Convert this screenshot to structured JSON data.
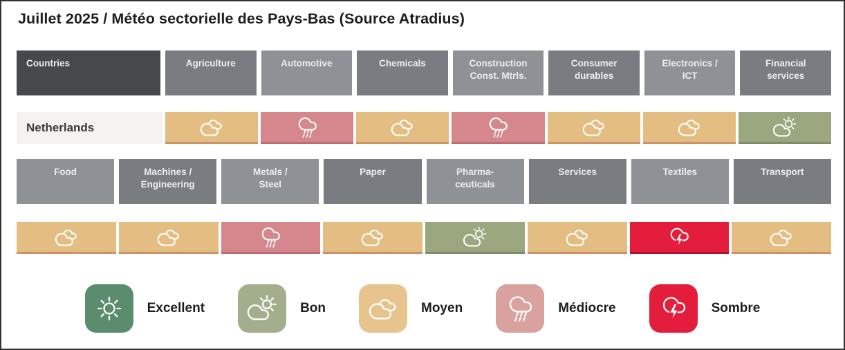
{
  "title": "Juillet 2025 / Météo sectorielle des Pays-Bas (Source Atradius)",
  "table1": {
    "corner": "Countries",
    "country": "Netherlands",
    "sectors": [
      "Agriculture",
      "Automotive",
      "Chemicals",
      "Construction\nConst. Mtrls.",
      "Consumer\ndurables",
      "Electronics /\nICT",
      "Financial\nservices"
    ],
    "weather": [
      "moyen",
      "mediocre",
      "moyen",
      "mediocre",
      "moyen",
      "moyen",
      "bon"
    ]
  },
  "table2": {
    "sectors": [
      "Food",
      "Machines /\nEngineering",
      "Metals /\nSteel",
      "Paper",
      "Pharma-\nceuticals",
      "Services",
      "Textiles",
      "Transport"
    ],
    "weather": [
      "moyen",
      "moyen",
      "mediocre",
      "moyen",
      "bon",
      "moyen",
      "sombre",
      "moyen"
    ]
  },
  "legend": [
    {
      "label": "Excellent",
      "status": "excellent"
    },
    {
      "label": "Bon",
      "status": "bon"
    },
    {
      "label": "Moyen",
      "status": "moyen"
    },
    {
      "label": "Médiocre",
      "status": "mediocre"
    },
    {
      "label": "Sombre",
      "status": "sombre"
    }
  ],
  "palette": {
    "cell": {
      "excellent": "#5b8c6e",
      "bon": "#9aa77f",
      "moyen": "#e4bd82",
      "mediocre": "#d5878d",
      "sombre": "#e51d3c"
    },
    "edge": {
      "excellent": "#49745a",
      "bon": "#7e8e66",
      "moyen": "#cc9366",
      "mediocre": "#c06c75",
      "sombre": "#b3122c"
    },
    "legend_tile": {
      "excellent": "#5b8c6e",
      "bon": "#a3af8c",
      "moyen": "#e7c48e",
      "mediocre": "#daa29e",
      "sombre": "#e51d3c"
    },
    "header": {
      "corner": "#45494c",
      "dark": "#797d82",
      "light": "#8e9297"
    },
    "country_cell_bg": "#f5f3ef",
    "icon_names": {
      "excellent": "sun-icon",
      "bon": "cloud-sun-icon",
      "moyen": "cloud-icon",
      "mediocre": "rain-cloud-icon",
      "sombre": "storm-cloud-icon"
    }
  },
  "chart_data": {
    "type": "table",
    "title": "Juillet 2025 / Météo sectorielle des Pays-Bas (Source Atradius)",
    "country": "Netherlands",
    "scale": [
      "Excellent",
      "Bon",
      "Moyen",
      "Médiocre",
      "Sombre"
    ],
    "ratings": {
      "Agriculture": "Moyen",
      "Automotive": "Médiocre",
      "Chemicals": "Moyen",
      "Construction Const. Mtrls.": "Médiocre",
      "Consumer durables": "Moyen",
      "Electronics / ICT": "Moyen",
      "Financial services": "Bon",
      "Food": "Moyen",
      "Machines / Engineering": "Moyen",
      "Metals / Steel": "Médiocre",
      "Paper": "Moyen",
      "Pharmaceuticals": "Bon",
      "Services": "Moyen",
      "Textiles": "Sombre",
      "Transport": "Moyen"
    }
  }
}
